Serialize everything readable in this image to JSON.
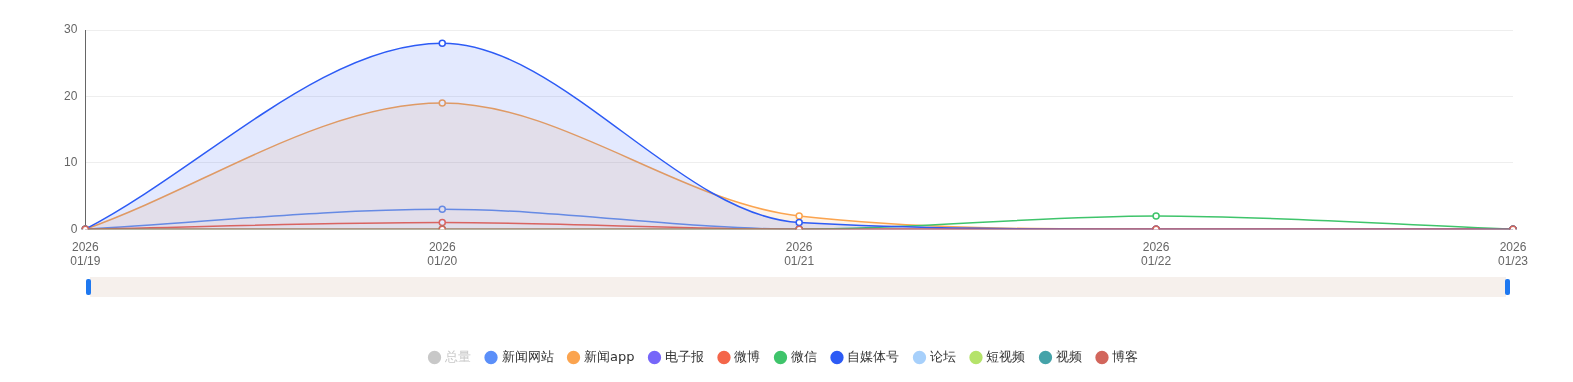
{
  "chart_data": {
    "type": "line",
    "categories": [
      "2026\n01/19",
      "2026\n01/20",
      "2026\n01/21",
      "2026\n01/22",
      "2026\n01/23"
    ],
    "ylim": [
      0,
      30
    ],
    "yticks": [
      0,
      10,
      20,
      30
    ],
    "grid": "y",
    "legend": "bottom",
    "marker": "circle",
    "series": [
      {
        "name": "总量",
        "color": "#c8c8c8",
        "values": [
          null,
          null,
          null,
          null,
          null
        ]
      },
      {
        "name": "新闻网站",
        "color": "#5b8ff9",
        "values": [
          0,
          3,
          0,
          0,
          0
        ]
      },
      {
        "name": "新闻app",
        "color": "#fba44f",
        "type": "area",
        "values": [
          0,
          19,
          2,
          0,
          0
        ]
      },
      {
        "name": "电子报",
        "color": "#7666f9",
        "values": [
          null,
          null,
          null,
          null,
          null
        ]
      },
      {
        "name": "微博",
        "color": "#f4664a",
        "values": [
          0,
          1,
          0,
          0,
          0
        ]
      },
      {
        "name": "微信",
        "color": "#3fc46b",
        "values": [
          0,
          0,
          0,
          2,
          0
        ]
      },
      {
        "name": "自媒体号",
        "color": "#2d5bf5",
        "type": "area",
        "values": [
          0,
          28,
          1,
          0,
          0
        ]
      },
      {
        "name": "论坛",
        "color": "#a7d0fb",
        "values": [
          null,
          null,
          null,
          null,
          null
        ]
      },
      {
        "name": "短视频",
        "color": "#b5e36a",
        "values": [
          null,
          null,
          null,
          null,
          null
        ]
      },
      {
        "name": "视频",
        "color": "#45a3a9",
        "values": [
          null,
          null,
          null,
          null,
          null
        ]
      },
      {
        "name": "博客",
        "color": "#d2665c",
        "values": [
          0,
          0,
          0,
          0,
          0
        ]
      }
    ]
  }
}
